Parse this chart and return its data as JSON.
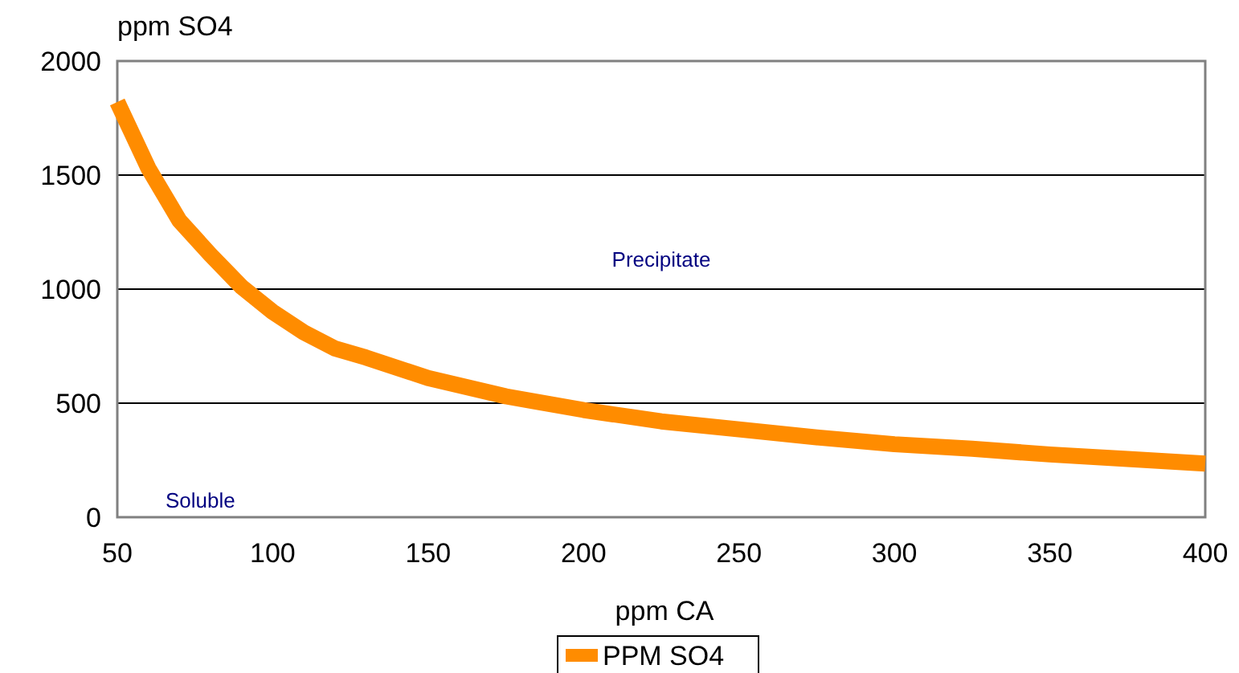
{
  "chart_data": {
    "type": "line",
    "xlabel": "ppm CA",
    "ylabel": "ppm SO4",
    "x": [
      50,
      60,
      70,
      80,
      90,
      100,
      110,
      120,
      130,
      150,
      175,
      200,
      225,
      250,
      275,
      300,
      325,
      350,
      375,
      400
    ],
    "series": [
      {
        "name": "PPM SO4",
        "color": "#ff8c00",
        "values": [
          1820,
          1530,
          1300,
          1150,
          1010,
          900,
          810,
          740,
          700,
          610,
          530,
          470,
          420,
          385,
          350,
          320,
          300,
          275,
          255,
          235
        ]
      }
    ],
    "xlim": [
      50,
      400
    ],
    "xticks": [
      50,
      100,
      150,
      200,
      250,
      300,
      350,
      400
    ],
    "ylim": [
      0,
      2000
    ],
    "yticks": [
      0,
      500,
      1000,
      1500,
      2000
    ],
    "grid": "y",
    "legend": "bottom",
    "marker": "none",
    "line_style": "solid",
    "annotations": [
      "Precipitate",
      "Soluble"
    ]
  }
}
